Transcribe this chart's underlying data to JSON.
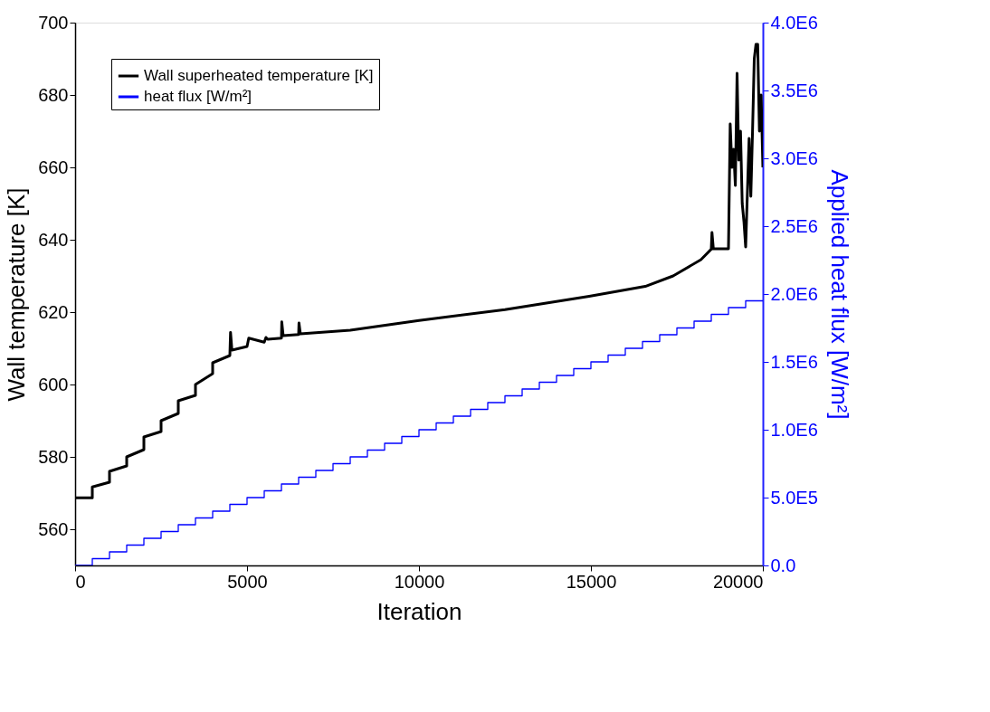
{
  "chart_data": {
    "type": "line",
    "xlabel": "Iteration",
    "ylabel": "Wall temperature [K]",
    "y2label": "Applied heat flux [W/m²]",
    "xlim": [
      0,
      20000
    ],
    "xticks": [
      0,
      5000,
      10000,
      15000,
      20000
    ],
    "ylim": [
      550,
      700
    ],
    "yticks": [
      560,
      580,
      600,
      620,
      640,
      660,
      680,
      700
    ],
    "y2lim": [
      0,
      4000000
    ],
    "y2ticks": [
      {
        "value": 0,
        "label": "0.0"
      },
      {
        "value": 500000,
        "label": "5.0E5"
      },
      {
        "value": 1000000,
        "label": "1.0E6"
      },
      {
        "value": 1500000,
        "label": "1.5E6"
      },
      {
        "value": 2000000,
        "label": "2.0E6"
      },
      {
        "value": 2500000,
        "label": "2.5E6"
      },
      {
        "value": 3000000,
        "label": "3.0E6"
      },
      {
        "value": 3500000,
        "label": "3.5E6"
      },
      {
        "value": 4000000,
        "label": "4.0E6"
      }
    ],
    "grid": false,
    "legend": "top left",
    "series": [
      {
        "name": "Wall superheated temperature [K]",
        "color": "#000000",
        "type": "line",
        "x": [
          0,
          500,
          500,
          1000,
          1000,
          1500,
          1500,
          2000,
          2000,
          2500,
          2500,
          3000,
          3000,
          3500,
          3500,
          4000,
          4000,
          4500,
          4520,
          4560,
          5000,
          5050,
          5500,
          5550,
          5600,
          6000,
          6010,
          6050,
          6500,
          6510,
          6550,
          8000,
          10000,
          12500,
          14950,
          16580,
          17390,
          18200,
          18500,
          18520,
          18560,
          19000,
          19050,
          19100,
          19150,
          19200,
          19250,
          19300,
          19350,
          19400,
          19450,
          19500,
          19600,
          19650,
          19700,
          19750,
          19800,
          19850,
          19900,
          19950,
          20000
        ],
        "values": [
          568.7,
          568.7,
          571.7,
          573,
          576,
          577.5,
          580,
          582,
          585.5,
          587,
          590,
          592,
          595.5,
          597,
          600,
          603,
          606,
          608,
          614.4,
          609.5,
          610.5,
          612.8,
          611.7,
          613,
          612.5,
          612.8,
          617.3,
          613.5,
          613.8,
          617,
          614,
          615,
          617.7,
          620.7,
          624.4,
          627.1,
          630,
          634.5,
          637.4,
          642,
          637.5,
          637.5,
          672,
          660,
          665,
          655,
          686,
          662,
          670,
          650,
          645,
          638,
          668,
          652,
          670,
          690,
          694,
          694,
          670,
          680,
          660
        ]
      },
      {
        "name": "heat flux [W/m²]",
        "color": "#0000ff",
        "type": "step",
        "axis": "y2",
        "x": [
          0,
          500,
          1000,
          1500,
          2000,
          2500,
          3000,
          3500,
          4000,
          4500,
          5000,
          5500,
          6000,
          6500,
          7000,
          7500,
          8000,
          8500,
          9000,
          9500,
          10000,
          10500,
          11000,
          11500,
          12000,
          12500,
          13000,
          13500,
          14000,
          14500,
          15000,
          15500,
          16000,
          16500,
          17000,
          17500,
          18000,
          18500,
          19000,
          19500,
          20000
        ],
        "values": [
          0,
          50000,
          100000,
          150000,
          200000,
          250000,
          300000,
          350000,
          400000,
          450000,
          500000,
          550000,
          600000,
          650000,
          700000,
          750000,
          800000,
          850000,
          900000,
          950000,
          1000000,
          1050000,
          1100000,
          1150000,
          1200000,
          1250000,
          1300000,
          1350000,
          1400000,
          1450000,
          1500000,
          1550000,
          1600000,
          1650000,
          1700000,
          1750000,
          1800000,
          1850000,
          1900000,
          1950000,
          1950000
        ]
      }
    ]
  }
}
